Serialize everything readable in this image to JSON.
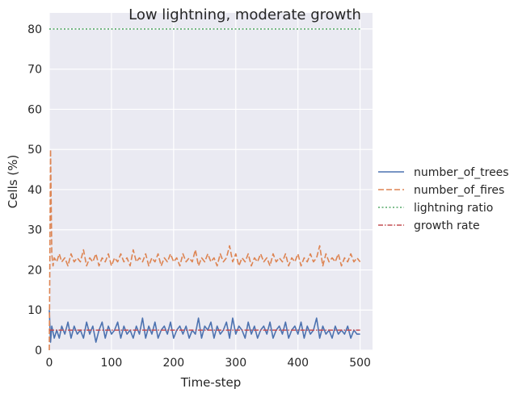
{
  "chart_data": {
    "type": "line",
    "title": "Low lightning, moderate growth",
    "xlabel": "Time-step",
    "ylabel": "Cells (%)",
    "xlim": [
      0,
      520
    ],
    "ylim": [
      0,
      84
    ],
    "xticks": [
      0,
      100,
      200,
      300,
      400,
      500
    ],
    "yticks": [
      0,
      10,
      20,
      30,
      40,
      50,
      60,
      70,
      80
    ],
    "grid": true,
    "legend_position": "right",
    "series": [
      {
        "name": "number_of_trees",
        "color": "#4c72b0",
        "style": "solid",
        "x": [
          0,
          2,
          4,
          8,
          12,
          16,
          20,
          25,
          30,
          35,
          40,
          45,
          50,
          55,
          60,
          65,
          70,
          75,
          80,
          85,
          90,
          95,
          100,
          105,
          110,
          115,
          120,
          125,
          130,
          135,
          140,
          145,
          150,
          155,
          160,
          165,
          170,
          175,
          180,
          185,
          190,
          195,
          200,
          205,
          210,
          215,
          220,
          225,
          230,
          235,
          240,
          245,
          250,
          255,
          260,
          265,
          270,
          275,
          280,
          285,
          290,
          295,
          300,
          305,
          310,
          315,
          320,
          325,
          330,
          335,
          340,
          345,
          350,
          355,
          360,
          365,
          370,
          375,
          380,
          385,
          390,
          395,
          400,
          405,
          410,
          415,
          420,
          425,
          430,
          435,
          440,
          445,
          450,
          455,
          460,
          465,
          470,
          475,
          480,
          485,
          490,
          495,
          500
        ],
        "values": [
          10,
          2,
          6,
          3,
          5,
          3,
          6,
          4,
          7,
          3,
          6,
          4,
          5,
          3,
          7,
          4,
          6,
          2,
          5,
          7,
          3,
          6,
          4,
          5,
          7,
          3,
          6,
          4,
          5,
          3,
          6,
          4,
          8,
          3,
          6,
          4,
          7,
          3,
          5,
          6,
          4,
          7,
          3,
          5,
          6,
          4,
          6,
          3,
          5,
          4,
          8,
          3,
          6,
          5,
          7,
          3,
          6,
          4,
          5,
          7,
          3,
          8,
          4,
          6,
          5,
          3,
          7,
          4,
          6,
          3,
          5,
          6,
          4,
          7,
          3,
          5,
          6,
          4,
          7,
          3,
          5,
          6,
          4,
          7,
          3,
          6,
          4,
          5,
          8,
          3,
          6,
          4,
          5,
          3,
          6,
          4,
          5,
          4,
          6,
          3,
          5,
          4,
          4
        ]
      },
      {
        "name": "number_of_fires",
        "color": "#dd8452",
        "style": "dashed",
        "x": [
          0,
          2,
          4,
          6,
          8,
          12,
          16,
          20,
          25,
          30,
          35,
          40,
          45,
          50,
          55,
          60,
          65,
          70,
          75,
          80,
          85,
          90,
          95,
          100,
          105,
          110,
          115,
          120,
          125,
          130,
          135,
          140,
          145,
          150,
          155,
          160,
          165,
          170,
          175,
          180,
          185,
          190,
          195,
          200,
          205,
          210,
          215,
          220,
          225,
          230,
          235,
          240,
          245,
          250,
          255,
          260,
          265,
          270,
          275,
          280,
          285,
          290,
          295,
          300,
          305,
          310,
          315,
          320,
          325,
          330,
          335,
          340,
          345,
          350,
          355,
          360,
          365,
          370,
          375,
          380,
          385,
          390,
          395,
          400,
          405,
          410,
          415,
          420,
          425,
          430,
          435,
          440,
          445,
          450,
          455,
          460,
          465,
          470,
          475,
          480,
          485,
          490,
          495,
          500
        ],
        "values": [
          0,
          50,
          24,
          21,
          23,
          22,
          24,
          22,
          23,
          21,
          24,
          22,
          23,
          22,
          25,
          21,
          23,
          22,
          24,
          21,
          23,
          22,
          24,
          21,
          23,
          22,
          24,
          22,
          23,
          21,
          25,
          22,
          23,
          22,
          24,
          21,
          23,
          22,
          24,
          21,
          23,
          22,
          24,
          22,
          23,
          21,
          24,
          22,
          23,
          22,
          25,
          21,
          23,
          22,
          24,
          22,
          23,
          21,
          24,
          22,
          23,
          26,
          22,
          24,
          21,
          23,
          22,
          24,
          21,
          23,
          22,
          24,
          22,
          23,
          21,
          24,
          22,
          23,
          22,
          24,
          21,
          23,
          22,
          24,
          21,
          23,
          22,
          24,
          22,
          23,
          26,
          21,
          24,
          22,
          23,
          22,
          24,
          21,
          23,
          22,
          24,
          22,
          23,
          22
        ]
      },
      {
        "name": "lightning ratio",
        "color": "#55a868",
        "style": "dotted",
        "x": [
          0,
          500
        ],
        "values": [
          80,
          80
        ]
      },
      {
        "name": "growth rate",
        "color": "#c44e52",
        "style": "dashdot",
        "x": [
          0,
          500
        ],
        "values": [
          5,
          5
        ]
      }
    ]
  }
}
